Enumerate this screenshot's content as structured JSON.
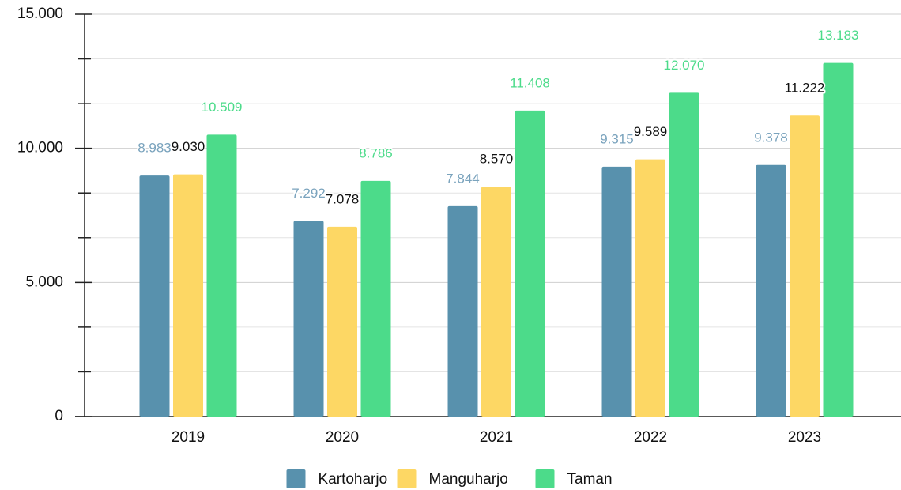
{
  "chart_data": {
    "type": "bar",
    "categories": [
      "2019",
      "2020",
      "2021",
      "2022",
      "2023"
    ],
    "series": [
      {
        "name": "Kartoharjo",
        "color": "#5891ad",
        "label_color": "#7aa3bd",
        "values": [
          8983,
          7292,
          7844,
          9315,
          9378
        ],
        "value_labels": [
          "8.983",
          "7.292",
          "7.844",
          "9.315",
          "9.378"
        ]
      },
      {
        "name": "Manguharjo",
        "color": "#fdd764",
        "label_color": "#111111",
        "values": [
          9030,
          7078,
          8570,
          9589,
          11222
        ],
        "value_labels": [
          "9.030",
          "7.078",
          "8.570",
          "9.589",
          "11.222"
        ]
      },
      {
        "name": "Taman",
        "color": "#4cdb8a",
        "label_color": "#4cdb8a",
        "values": [
          10509,
          8786,
          11408,
          12070,
          13183
        ],
        "value_labels": [
          "10.509",
          "8.786",
          "11.408",
          "12.070",
          "13.183"
        ]
      }
    ],
    "ylim": [
      0,
      15000
    ],
    "yticks": [
      0,
      {
        "value": 5000,
        "label": "5.000"
      },
      {
        "value": 10000,
        "label": "10.000"
      },
      {
        "value": 15000,
        "label": "15.000"
      }
    ],
    "minor_divisions": 3,
    "grid": true,
    "legend": "bottom"
  }
}
